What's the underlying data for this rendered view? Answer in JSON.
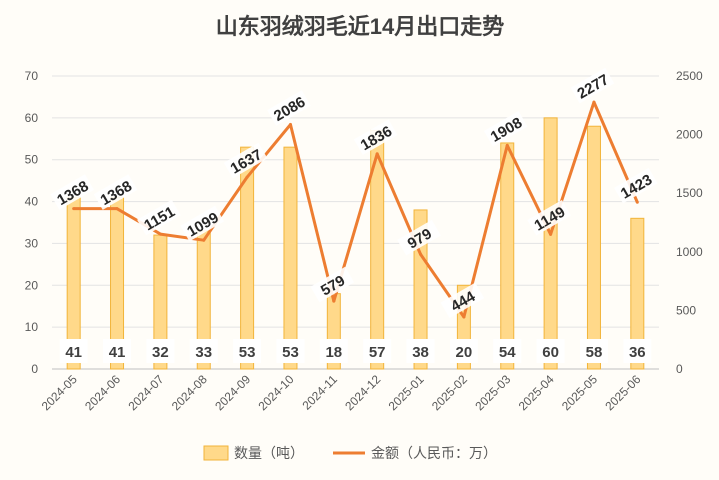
{
  "chart_data": {
    "type": "bar",
    "title": "山东羽绒羽毛近14月出口走势",
    "categories": [
      "2024-05",
      "2024-06",
      "2024-07",
      "2024-08",
      "2024-09",
      "2024-10",
      "2024-11",
      "2024-12",
      "2025-01",
      "2025-02",
      "2025-03",
      "2025-04",
      "2025-05",
      "2025-06"
    ],
    "series": [
      {
        "name": "数量（吨）",
        "type": "bar",
        "axis": "left",
        "color": "#ffd98a",
        "values": [
          41,
          41,
          32,
          33,
          53,
          53,
          18,
          57,
          38,
          20,
          54,
          60,
          58,
          36
        ]
      },
      {
        "name": "金额（人民币：万）",
        "type": "line",
        "axis": "right",
        "color": "#ed7d31",
        "values": [
          1368,
          1368,
          1151,
          1099,
          1637,
          2086,
          579,
          1836,
          979,
          444,
          1908,
          1149,
          2277,
          1423
        ]
      }
    ],
    "y_left": {
      "min": 0,
      "max": 70,
      "ticks": [
        0,
        10,
        20,
        30,
        40,
        50,
        60,
        70
      ]
    },
    "y_right": {
      "min": 0,
      "max": 2500,
      "ticks": [
        0,
        500,
        1000,
        1500,
        2000,
        2500
      ]
    },
    "grid": true,
    "legend_position": "bottom"
  }
}
